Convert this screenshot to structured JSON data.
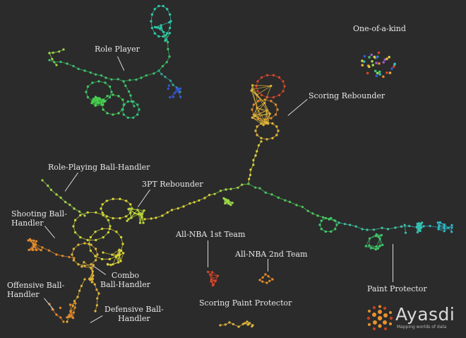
{
  "labels": {
    "role_player": "Role Player",
    "one_of_a_kind": "One-of-a-kind",
    "scoring_rebounder": "Scoring Rebounder",
    "role_playing_ball_handler": "Role-Playing Ball-Handler",
    "three_pt_rebounder": "3PT Rebounder",
    "shooting_ball_handler": [
      "Shooting Ball-",
      "Handler"
    ],
    "all_nba_1st": "All-NBA 1st Team",
    "all_nba_2nd": "All-NBA 2nd Team",
    "combo_ball_handler": [
      "Combo",
      "Ball-Handler"
    ],
    "offensive_ball_handler": [
      "Offensive Ball-",
      "Handler"
    ],
    "defensive_ball_handler": [
      "Defensive Ball-",
      "Handler"
    ],
    "scoring_paint_protector": "Scoring Paint Protector",
    "paint_protector": "Paint Protector"
  },
  "logo": {
    "wordmark": "Ayasdi",
    "tagline": "Mapping worlds of data"
  }
}
